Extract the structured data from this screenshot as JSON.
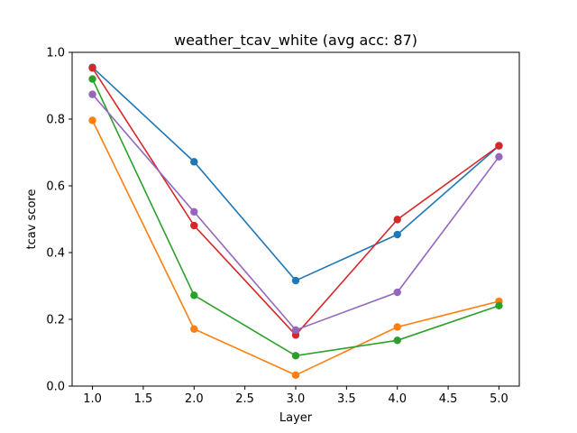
{
  "chart_data": {
    "type": "line",
    "title": "weather_tcav_white (avg acc: 87)",
    "xlabel": "Layer",
    "ylabel": "tcav score",
    "xlim": [
      0.8,
      5.2
    ],
    "ylim": [
      0.0,
      1.0
    ],
    "xticks": [
      "1.0",
      "1.5",
      "2.0",
      "2.5",
      "3.0",
      "3.5",
      "4.0",
      "4.5",
      "5.0"
    ],
    "yticks": [
      "0.0",
      "0.2",
      "0.4",
      "0.6",
      "0.8",
      "1.0"
    ],
    "grid": false,
    "x": [
      1,
      2,
      3,
      4,
      5
    ],
    "series": [
      {
        "color": "#1f77b4",
        "values": [
          0.955,
          0.672,
          0.316,
          0.454,
          0.72
        ]
      },
      {
        "color": "#ff7f0e",
        "values": [
          0.796,
          0.171,
          0.033,
          0.177,
          0.254
        ]
      },
      {
        "color": "#2ca02c",
        "values": [
          0.92,
          0.272,
          0.091,
          0.137,
          0.241
        ]
      },
      {
        "color": "#d62728",
        "values": [
          0.953,
          0.481,
          0.153,
          0.499,
          0.72
        ]
      },
      {
        "color": "#9467bd",
        "values": [
          0.874,
          0.522,
          0.168,
          0.281,
          0.687
        ]
      }
    ]
  }
}
